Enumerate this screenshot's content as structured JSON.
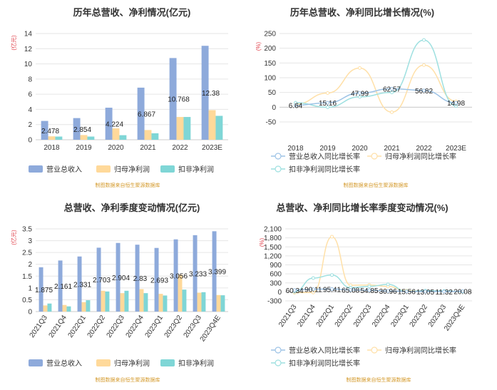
{
  "source_note": "制图数据来自恒生聚源数据库",
  "colors": {
    "revenue": "#8eaadb",
    "net_profit": "#ffd99a",
    "deducted_profit": "#7fd6d6",
    "rev_growth": "#9dc3e6",
    "np_growth": "#ffe0a8",
    "dp_growth": "#9ee0e0",
    "unit_label": "#e0404a",
    "title": "#333333",
    "source": "#d49a2c"
  },
  "chart_data": [
    {
      "type": "bar",
      "title": "历年总营收、净利情况(亿元)",
      "ylabel": "(亿元)",
      "categories": [
        "2018",
        "2019",
        "2020",
        "2021",
        "2022",
        "2023E"
      ],
      "ylim": [
        0,
        14
      ],
      "yticks": [
        0,
        2,
        4,
        6,
        8,
        10,
        12,
        14
      ],
      "series": [
        {
          "name": "营业总收入",
          "values": [
            2.478,
            2.854,
            4.224,
            6.867,
            10.768,
            12.38
          ]
        },
        {
          "name": "归母净利润",
          "values": [
            0.45,
            0.62,
            1.5,
            1.28,
            3.0,
            3.9
          ]
        },
        {
          "name": "扣非净利润",
          "values": [
            0.42,
            0.42,
            0.6,
            0.85,
            3.0,
            3.15
          ]
        }
      ],
      "data_labels": [
        "2.478",
        "2.854",
        "4.224",
        "6.867",
        "10.768",
        "12.38"
      ],
      "legend": "bottom-left",
      "grid": true
    },
    {
      "type": "line",
      "title": "历年总营收、净利同比增长情况(%)",
      "ylabel": "(%)",
      "categories": [
        "2018",
        "2019",
        "2020",
        "2021",
        "2022",
        "2023E"
      ],
      "ylim": [
        -50,
        250
      ],
      "yticks": [
        -50,
        0,
        50,
        100,
        150,
        200,
        250
      ],
      "series": [
        {
          "name": "营业总收入同比增长率",
          "values": [
            6.64,
            15.16,
            47.99,
            62.57,
            56.82,
            14.98
          ]
        },
        {
          "name": "归母净利润同比增长率",
          "values": [
            10,
            48,
            133,
            -17,
            143,
            20
          ]
        },
        {
          "name": "扣非净利润同比增长率",
          "values": [
            15,
            0,
            35,
            50,
            228,
            4
          ]
        }
      ],
      "data_labels": [
        "6.64",
        "15.16",
        "47.99",
        "62.57",
        "56.82",
        "14.98"
      ],
      "legend": "bottom",
      "grid": true
    },
    {
      "type": "bar",
      "title": "总营收、净利季度变动情况(亿元)",
      "ylabel": "(亿元)",
      "categories": [
        "2021Q3",
        "2021Q4",
        "2022Q1",
        "2022Q2",
        "2022Q3",
        "2022Q4",
        "2023Q1",
        "2023Q2",
        "2023Q3",
        "2023Q4E"
      ],
      "ylim": [
        0,
        3.5
      ],
      "yticks": [
        0,
        0.5,
        1,
        1.5,
        2,
        2.5,
        3,
        3.5
      ],
      "series": [
        {
          "name": "营业总收入",
          "values": [
            1.875,
            2.161,
            2.331,
            2.703,
            2.904,
            2.83,
            2.693,
            3.056,
            3.233,
            3.399
          ]
        },
        {
          "name": "归母净利润",
          "values": [
            0.26,
            0.28,
            0.4,
            0.88,
            0.78,
            0.95,
            0.75,
            1.56,
            0.8,
            0.7
          ]
        },
        {
          "name": "扣非净利润",
          "values": [
            0.34,
            0.22,
            0.48,
            0.85,
            0.88,
            0.78,
            0.68,
            0.93,
            0.82,
            0.69
          ]
        }
      ],
      "data_labels": [
        "1.875",
        "2.161",
        "2.331",
        "2.703",
        "2.904",
        "2.83",
        "2.693",
        "3.056",
        "3.233",
        "3.399"
      ],
      "legend": "bottom-left",
      "grid": true
    },
    {
      "type": "line",
      "title": "总营收、净利同比增长率季度变动情况(%)",
      "ylabel": "(%)",
      "categories": [
        "2021Q3",
        "2021Q4",
        "2022Q1",
        "2022Q2",
        "2022Q3",
        "2022Q4",
        "2023Q1",
        "2023Q2",
        "2023Q3",
        "2023Q4E"
      ],
      "ylim": [
        -300,
        2100
      ],
      "yticks": [
        -300,
        0,
        300,
        600,
        900,
        1200,
        1500,
        1800,
        2100
      ],
      "series": [
        {
          "name": "营业总收入同比增长率",
          "values": [
            60.34,
            90.11,
            95.41,
            65.08,
            54.85,
            30.96,
            15.56,
            13.05,
            11.32,
            20.08
          ]
        },
        {
          "name": "归母净利润同比增长率",
          "values": [
            -30,
            -20,
            1840,
            220,
            230,
            180,
            40,
            30,
            20,
            10
          ]
        },
        {
          "name": "扣非净利润同比增长率",
          "values": [
            10,
            460,
            560,
            140,
            180,
            250,
            20,
            40,
            30,
            10
          ]
        }
      ],
      "data_labels": [
        "60.34",
        "90.11",
        "95.41",
        "65.08",
        "54.85",
        "30.96",
        "15.56",
        "13.05",
        "11.32",
        "20.08"
      ],
      "legend": "bottom",
      "grid": true
    }
  ]
}
